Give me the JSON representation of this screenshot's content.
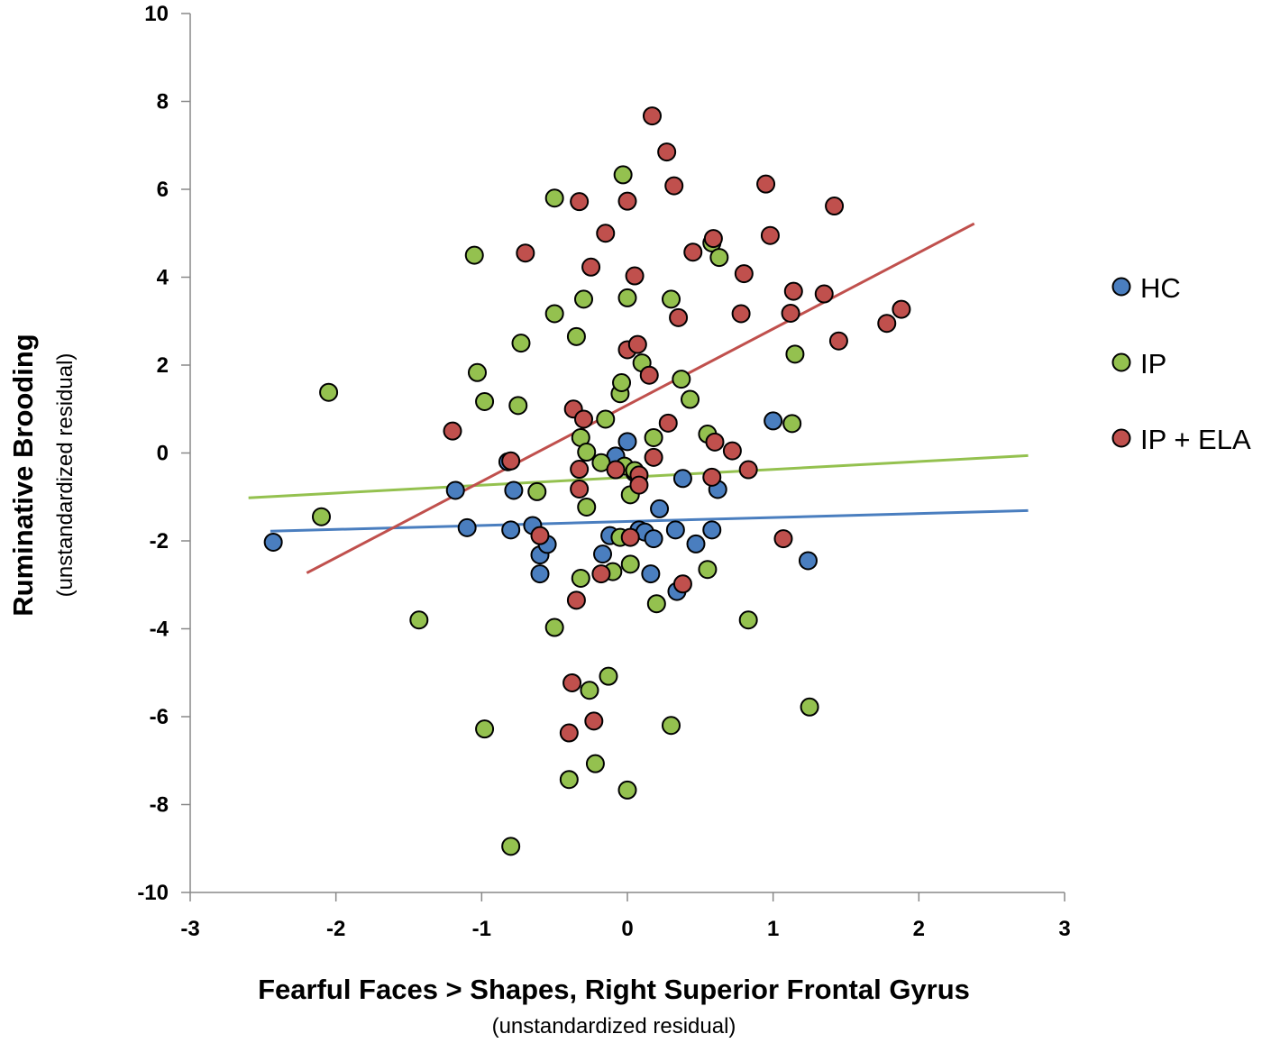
{
  "chart_data": {
    "type": "scatter",
    "title": "",
    "xlabel": "Fearful Faces > Shapes, Right Superior Frontal Gyrus",
    "xlabel_sub": "(unstandardized residual)",
    "ylabel": "Ruminative Brooding",
    "ylabel_sub": "(unstandardized residual)",
    "xlim": [
      -3,
      3
    ],
    "ylim": [
      -10,
      10
    ],
    "xticks": [
      -3,
      -2,
      -1,
      0,
      1,
      2,
      3
    ],
    "yticks": [
      -10,
      -8,
      -6,
      -4,
      -2,
      0,
      2,
      4,
      6,
      8,
      10
    ],
    "grid": false,
    "legend_position": "right",
    "series": [
      {
        "name": "HC",
        "color": "#4a7ebf",
        "trend": [
          [
            -2.45,
            -1.78
          ],
          [
            2.75,
            -1.31
          ]
        ],
        "points": [
          [
            -2.43,
            -2.03
          ],
          [
            -1.18,
            -0.85
          ],
          [
            -1.1,
            -1.7
          ],
          [
            -0.82,
            -0.2
          ],
          [
            -0.78,
            -0.85
          ],
          [
            -0.8,
            -1.75
          ],
          [
            -0.65,
            -1.65
          ],
          [
            -0.6,
            -2.32
          ],
          [
            -0.55,
            -2.08
          ],
          [
            -0.6,
            -2.75
          ],
          [
            -0.17,
            -2.3
          ],
          [
            -0.12,
            -1.88
          ],
          [
            -0.08,
            -0.07
          ],
          [
            0.0,
            0.26
          ],
          [
            0.05,
            -0.45
          ],
          [
            0.08,
            -1.75
          ],
          [
            0.12,
            -1.8
          ],
          [
            0.16,
            -2.75
          ],
          [
            0.18,
            -1.95
          ],
          [
            0.22,
            -1.27
          ],
          [
            0.33,
            -1.75
          ],
          [
            0.34,
            -3.15
          ],
          [
            0.38,
            -0.58
          ],
          [
            0.47,
            -2.07
          ],
          [
            0.58,
            -1.75
          ],
          [
            0.62,
            -0.83
          ],
          [
            1.0,
            0.73
          ],
          [
            1.24,
            -2.45
          ]
        ]
      },
      {
        "name": "IP",
        "color": "#94c14f",
        "trend": [
          [
            -2.6,
            -1.02
          ],
          [
            2.75,
            -0.06
          ]
        ],
        "points": [
          [
            -2.1,
            -1.45
          ],
          [
            -2.05,
            1.38
          ],
          [
            -1.43,
            -3.8
          ],
          [
            -1.05,
            4.5
          ],
          [
            -1.03,
            1.83
          ],
          [
            -0.98,
            1.17
          ],
          [
            -0.98,
            -6.28
          ],
          [
            -0.8,
            -8.95
          ],
          [
            -0.75,
            1.08
          ],
          [
            -0.73,
            2.5
          ],
          [
            -0.62,
            -0.88
          ],
          [
            -0.5,
            3.17
          ],
          [
            -0.5,
            5.8
          ],
          [
            -0.5,
            -3.97
          ],
          [
            -0.35,
            2.65
          ],
          [
            -0.32,
            0.35
          ],
          [
            -0.32,
            -2.85
          ],
          [
            -0.3,
            3.5
          ],
          [
            -0.28,
            0.02
          ],
          [
            -0.28,
            -1.23
          ],
          [
            -0.26,
            -5.4
          ],
          [
            -0.22,
            -7.07
          ],
          [
            -0.18,
            -0.22
          ],
          [
            -0.15,
            0.77
          ],
          [
            -0.13,
            -5.08
          ],
          [
            -0.1,
            -2.7
          ],
          [
            -0.05,
            1.35
          ],
          [
            -0.04,
            1.6
          ],
          [
            -0.05,
            -1.92
          ],
          [
            -0.03,
            6.33
          ],
          [
            -0.02,
            -0.3
          ],
          [
            0.0,
            3.53
          ],
          [
            0.0,
            -7.67
          ],
          [
            0.02,
            -2.53
          ],
          [
            0.02,
            -0.95
          ],
          [
            0.05,
            -0.4
          ],
          [
            0.1,
            2.05
          ],
          [
            0.18,
            0.35
          ],
          [
            0.2,
            -3.43
          ],
          [
            0.3,
            3.5
          ],
          [
            0.3,
            -6.2
          ],
          [
            0.37,
            1.68
          ],
          [
            0.43,
            1.22
          ],
          [
            0.55,
            0.43
          ],
          [
            0.55,
            -2.65
          ],
          [
            0.58,
            4.78
          ],
          [
            0.63,
            4.45
          ],
          [
            0.83,
            -3.8
          ],
          [
            1.13,
            0.67
          ],
          [
            1.15,
            2.25
          ],
          [
            1.25,
            -5.78
          ],
          [
            -0.4,
            -7.43
          ]
        ]
      },
      {
        "name": "IP + ELA",
        "color": "#c0504d",
        "trend": [
          [
            -2.2,
            -2.73
          ],
          [
            2.38,
            5.22
          ]
        ],
        "points": [
          [
            -1.2,
            0.5
          ],
          [
            -0.8,
            -0.18
          ],
          [
            -0.7,
            4.55
          ],
          [
            -0.6,
            -1.88
          ],
          [
            -0.37,
            1.0
          ],
          [
            -0.33,
            5.72
          ],
          [
            -0.33,
            -0.37
          ],
          [
            -0.33,
            -0.82
          ],
          [
            -0.3,
            0.77
          ],
          [
            -0.35,
            -3.35
          ],
          [
            -0.38,
            -5.23
          ],
          [
            -0.4,
            -6.37
          ],
          [
            -0.25,
            4.23
          ],
          [
            -0.23,
            -6.1
          ],
          [
            -0.18,
            -2.75
          ],
          [
            -0.15,
            5.0
          ],
          [
            -0.08,
            -0.38
          ],
          [
            0.0,
            5.73
          ],
          [
            0.0,
            2.35
          ],
          [
            0.02,
            -1.92
          ],
          [
            0.05,
            4.03
          ],
          [
            0.07,
            2.47
          ],
          [
            0.08,
            -0.5
          ],
          [
            0.08,
            -0.73
          ],
          [
            0.15,
            1.77
          ],
          [
            0.17,
            7.67
          ],
          [
            0.18,
            -0.1
          ],
          [
            0.27,
            6.85
          ],
          [
            0.28,
            0.68
          ],
          [
            0.32,
            6.08
          ],
          [
            0.35,
            3.08
          ],
          [
            0.38,
            -2.98
          ],
          [
            0.45,
            4.57
          ],
          [
            0.58,
            -0.55
          ],
          [
            0.59,
            4.88
          ],
          [
            0.6,
            0.25
          ],
          [
            0.72,
            0.05
          ],
          [
            0.78,
            3.17
          ],
          [
            0.8,
            4.08
          ],
          [
            0.83,
            -0.38
          ],
          [
            0.95,
            6.12
          ],
          [
            0.98,
            4.95
          ],
          [
            1.07,
            -1.95
          ],
          [
            1.12,
            3.18
          ],
          [
            1.14,
            3.68
          ],
          [
            1.35,
            3.62
          ],
          [
            1.42,
            5.62
          ],
          [
            1.45,
            2.55
          ],
          [
            1.78,
            2.95
          ],
          [
            1.88,
            3.27
          ]
        ]
      }
    ]
  }
}
